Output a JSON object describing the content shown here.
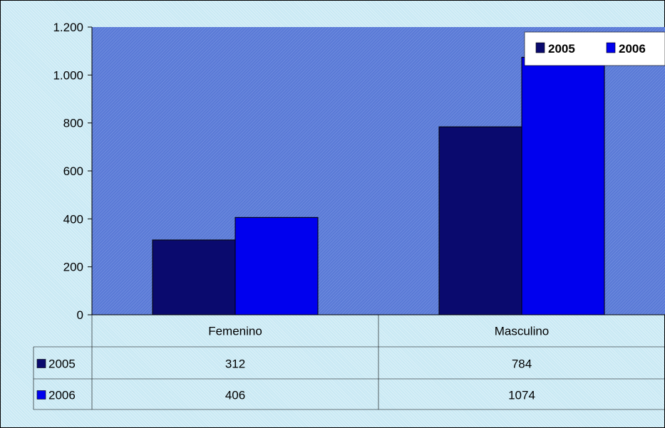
{
  "chart_data": {
    "type": "bar",
    "categories": [
      "Femenino",
      "Masculino"
    ],
    "series": [
      {
        "name": "2005",
        "values": [
          312,
          784
        ],
        "value_labels": [
          "312",
          "784"
        ],
        "color": "#0a0a6e"
      },
      {
        "name": "2006",
        "values": [
          406,
          1074
        ],
        "value_labels": [
          "406",
          "1074"
        ],
        "color": "#0000ee"
      }
    ],
    "ylim": [
      0,
      1200
    ],
    "yticks": [
      0,
      200,
      400,
      600,
      800,
      1000,
      1200
    ],
    "ytick_labels": [
      "0",
      "200",
      "400",
      "600",
      "800",
      "1.000",
      "1.200"
    ],
    "title": "",
    "xlabel": "",
    "ylabel": "",
    "legend_position": "top-right",
    "data_table": true,
    "grid": false,
    "plot_background": "#5a7ad6",
    "chart_background": "#c9e9f4"
  }
}
